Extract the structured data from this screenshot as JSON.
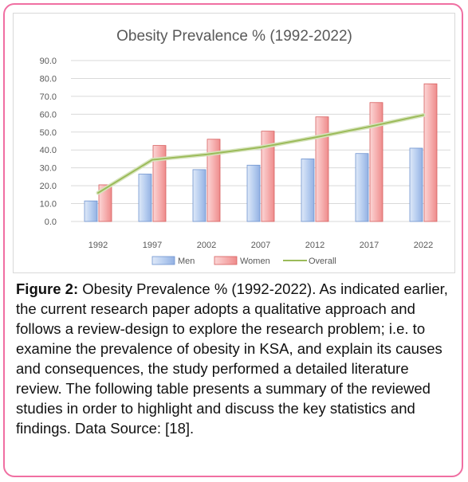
{
  "chart_data": {
    "type": "bar",
    "title": "Obesity Prevalence % (1992-2022)",
    "categories": [
      "1992",
      "1997",
      "2002",
      "2007",
      "2012",
      "2017",
      "2022"
    ],
    "series": [
      {
        "name": "Men",
        "type": "bar",
        "color": "#a9c4ec",
        "values": [
          11.5,
          26.5,
          29.0,
          31.5,
          35.0,
          38.0,
          41.0
        ]
      },
      {
        "name": "Women",
        "type": "bar",
        "color": "#f5a3a3",
        "values": [
          20.5,
          42.5,
          46.0,
          50.5,
          58.5,
          66.5,
          77.0
        ]
      },
      {
        "name": "Overall",
        "type": "line",
        "color": "#9bbb59",
        "values": [
          16.0,
          34.5,
          37.5,
          41.5,
          47.0,
          53.0,
          59.5
        ]
      }
    ],
    "yticks": [
      "0.0",
      "10.0",
      "20.0",
      "30.0",
      "40.0",
      "50.0",
      "60.0",
      "70.0",
      "80.0",
      "90.0"
    ],
    "ylim": [
      0,
      90
    ],
    "grid": true,
    "legend_position": "bottom"
  },
  "caption": {
    "label": "Figure 2:",
    "text": "Obesity Prevalence % (1992-2022). As indicated earlier, the current research paper adopts a qualitative approach and follows a review-design to explore the research problem; i.e. to examine the prevalence of obesity in KSA, and explain its causes and consequences, the study performed a detailed literature review. The following table presents a summary of the reviewed studies in order to highlight and discuss the key statistics and findings. Data Source: [18]."
  },
  "colors": {
    "frame_border": "#f06fa2",
    "grid": "#d9d9d9",
    "axis_text": "#595959",
    "title_text": "#595959"
  }
}
